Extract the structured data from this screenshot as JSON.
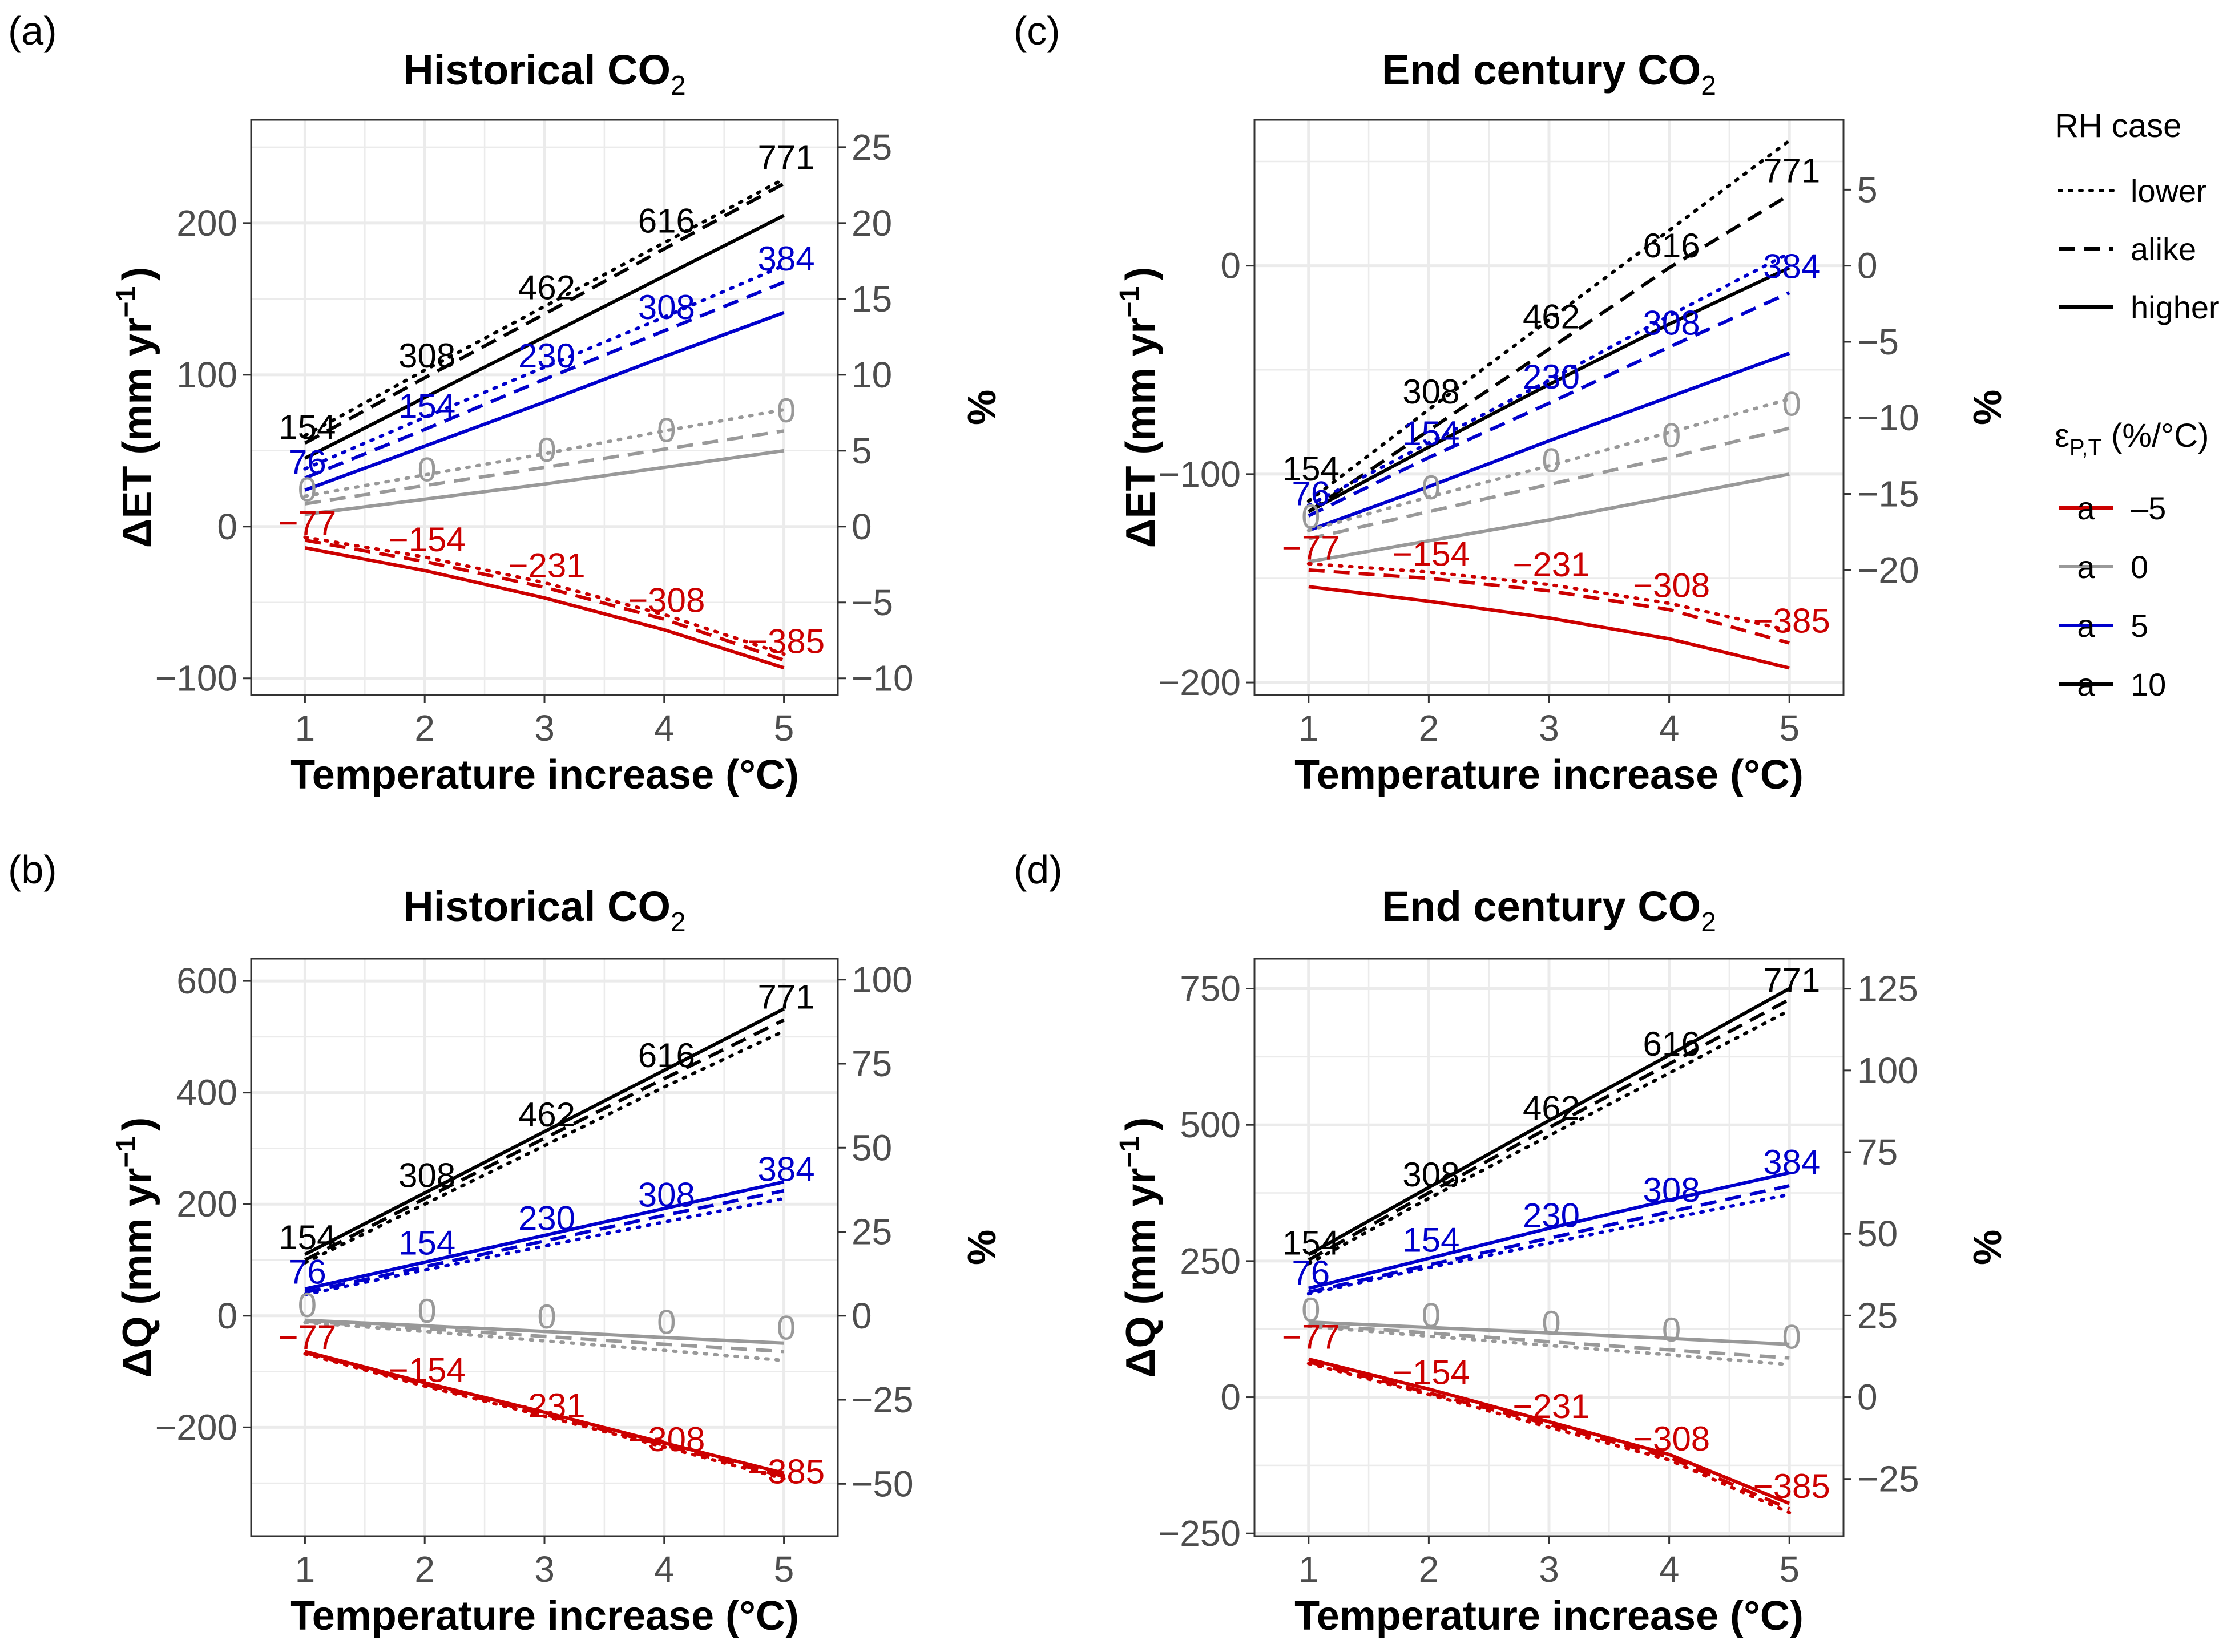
{
  "colors": {
    "eps_-5": "#CC0000",
    "eps_0": "#999999",
    "eps_5": "#0000CC",
    "eps_10": "#000000",
    "grid": "#ebebeb",
    "panel_border": "#333333",
    "tick_text": "#4d4d4d"
  },
  "legend": {
    "rh_title": "RH case",
    "rh_items": [
      {
        "label": "lower",
        "dash": "dotted"
      },
      {
        "label": "alike",
        "dash": "dashed"
      },
      {
        "label": "higher",
        "dash": "solid"
      }
    ],
    "eps_title_main": "ε",
    "eps_title_sub": "P,T",
    "eps_title_rest": " (%/°C)",
    "eps_key_glyph": "a",
    "eps_items": [
      {
        "label": "–5",
        "color_key": "eps_-5"
      },
      {
        "label": "0",
        "color_key": "eps_0"
      },
      {
        "label": "5",
        "color_key": "eps_5"
      },
      {
        "label": "10",
        "color_key": "eps_10"
      }
    ]
  },
  "chart_data": [
    {
      "panel": "(a)",
      "type": "line",
      "title_main": "Historical CO",
      "title_sub": "2",
      "xlabel": "Temperature increase (°C)",
      "ylabel_main": "ΔET (mm yr",
      "ylabel_sup": "−1",
      "ylabel_end": ")",
      "y2label": "%",
      "xlim": [
        0.55,
        5.45
      ],
      "ylim": [
        -111,
        268
      ],
      "x": [
        1,
        2,
        3,
        4,
        5
      ],
      "x_ticks": [
        1,
        2,
        3,
        4,
        5
      ],
      "y_ticks": [
        -100,
        0,
        100,
        200
      ],
      "y2_ticks": [
        -10,
        -5,
        0,
        5,
        10,
        15,
        20,
        25
      ],
      "y2_scale": 0.1,
      "grid": true,
      "series": [
        {
          "eps": "10",
          "rh": "lower",
          "values": [
            60,
            103,
            145,
            187,
            229
          ]
        },
        {
          "eps": "10",
          "rh": "alike",
          "values": [
            55,
            98,
            140,
            183,
            226
          ]
        },
        {
          "eps": "10",
          "rh": "higher",
          "values": [
            45,
            85,
            125,
            165,
            205
          ]
        },
        {
          "eps": "5",
          "rh": "lower",
          "values": [
            38,
            72,
            105,
            138,
            172
          ]
        },
        {
          "eps": "5",
          "rh": "alike",
          "values": [
            32,
            64,
            97,
            129,
            161
          ]
        },
        {
          "eps": "5",
          "rh": "higher",
          "values": [
            24,
            53,
            82,
            112,
            141
          ]
        },
        {
          "eps": "0",
          "rh": "lower",
          "values": [
            20,
            34,
            48,
            63,
            77
          ]
        },
        {
          "eps": "0",
          "rh": "alike",
          "values": [
            15,
            27,
            39,
            51,
            63
          ]
        },
        {
          "eps": "0",
          "rh": "higher",
          "values": [
            8,
            18,
            28,
            39,
            50
          ]
        },
        {
          "eps": "-5",
          "rh": "lower",
          "values": [
            -7,
            -20,
            -37,
            -58,
            -84
          ]
        },
        {
          "eps": "-5",
          "rh": "alike",
          "values": [
            -9,
            -23,
            -40,
            -61,
            -88
          ]
        },
        {
          "eps": "-5",
          "rh": "higher",
          "values": [
            -14,
            -29,
            -47,
            -68,
            -93
          ]
        }
      ],
      "annotations": [
        {
          "eps": "10",
          "text": [
            "154",
            "308",
            "462",
            "616",
            "771"
          ],
          "y": [
            66,
            113,
            158,
            202,
            244
          ]
        },
        {
          "eps": "5",
          "text": [
            "76",
            "154",
            "230",
            "308",
            "384"
          ],
          "y": [
            43,
            80,
            113,
            145,
            177
          ]
        },
        {
          "eps": "0",
          "text": [
            "0",
            "0",
            "0",
            "0",
            "0"
          ],
          "y": [
            25,
            38,
            51,
            64,
            77
          ]
        },
        {
          "eps": "-5",
          "text": [
            "−77",
            "−154",
            "−231",
            "−308",
            "−385"
          ],
          "y": [
            3,
            -8,
            -25,
            -48,
            -75
          ]
        }
      ]
    },
    {
      "panel": "(c)",
      "type": "line",
      "title_main": "End century CO",
      "title_sub": "2",
      "xlabel": "Temperature increase (°C)",
      "ylabel_main": "ΔET (mm yr",
      "ylabel_sup": "−1",
      "ylabel_end": ")",
      "y2label": "%",
      "xlim": [
        0.55,
        5.45
      ],
      "ylim": [
        -206,
        70
      ],
      "x": [
        1,
        2,
        3,
        4,
        5
      ],
      "x_ticks": [
        1,
        2,
        3,
        4,
        5
      ],
      "y_ticks": [
        -200,
        -100,
        0
      ],
      "y2_ticks": [
        -20,
        -15,
        -10,
        -5,
        0,
        5
      ],
      "y2_scale": 0.137,
      "grid": true,
      "series": [
        {
          "eps": "10",
          "rh": "lower",
          "values": [
            -113,
            -69,
            -26,
            17,
            60
          ]
        },
        {
          "eps": "10",
          "rh": "alike",
          "values": [
            -118,
            -79,
            -40,
            -1,
            34
          ]
        },
        {
          "eps": "10",
          "rh": "higher",
          "values": [
            -118,
            -87,
            -57,
            -28,
            -1
          ]
        },
        {
          "eps": "5",
          "rh": "lower",
          "values": [
            -115,
            -85,
            -55,
            -24,
            6
          ]
        },
        {
          "eps": "5",
          "rh": "alike",
          "values": [
            -120,
            -92,
            -66,
            -39,
            -13
          ]
        },
        {
          "eps": "5",
          "rh": "higher",
          "values": [
            -127,
            -106,
            -84,
            -63,
            -42
          ]
        },
        {
          "eps": "0",
          "rh": "lower",
          "values": [
            -127,
            -111,
            -96,
            -80,
            -64
          ]
        },
        {
          "eps": "0",
          "rh": "alike",
          "values": [
            -131,
            -118,
            -105,
            -92,
            -78
          ]
        },
        {
          "eps": "0",
          "rh": "higher",
          "values": [
            -142,
            -132,
            -122,
            -111,
            -100
          ]
        },
        {
          "eps": "-5",
          "rh": "lower",
          "values": [
            -143,
            -147,
            -153,
            -162,
            -175
          ]
        },
        {
          "eps": "-5",
          "rh": "alike",
          "values": [
            -146,
            -150,
            -156,
            -165,
            -181
          ]
        },
        {
          "eps": "-5",
          "rh": "higher",
          "values": [
            -154,
            -161,
            -169,
            -179,
            -193
          ]
        }
      ],
      "annotations": [
        {
          "eps": "10",
          "text": [
            "154",
            "308",
            "462",
            "616",
            "771"
          ],
          "y": [
            -97,
            -60,
            -24,
            10,
            46
          ]
        },
        {
          "eps": "5",
          "text": [
            "76",
            "154",
            "230",
            "308",
            "384"
          ],
          "y": [
            -109,
            -80,
            -53,
            -27,
            0
          ]
        },
        {
          "eps": "0",
          "text": [
            "0",
            "0",
            "0",
            "0",
            "0"
          ],
          "y": [
            -120,
            -106,
            -93,
            -81,
            -66
          ]
        },
        {
          "eps": "-5",
          "text": [
            "−77",
            "−154",
            "−231",
            "−308",
            "−385"
          ],
          "y": [
            -135,
            -138,
            -143,
            -153,
            -170
          ]
        }
      ]
    },
    {
      "panel": "(b)",
      "type": "line",
      "title_main": "Historical CO",
      "title_sub": "2",
      "xlabel": "Temperature increase (°C)",
      "ylabel_main": "ΔQ (mm yr",
      "ylabel_sup": "−1",
      "ylabel_end": ")",
      "y2label": "%",
      "xlim": [
        0.55,
        5.45
      ],
      "ylim": [
        -395,
        640
      ],
      "x": [
        1,
        2,
        3,
        4,
        5
      ],
      "x_ticks": [
        1,
        2,
        3,
        4,
        5
      ],
      "y_ticks": [
        -200,
        0,
        200,
        400,
        600
      ],
      "y2_ticks": [
        -50,
        -25,
        0,
        25,
        50,
        75,
        100
      ],
      "y2_scale": 0.166,
      "grid": true,
      "series": [
        {
          "eps": "10",
          "rh": "lower",
          "values": [
            95,
            200,
            305,
            410,
            510
          ]
        },
        {
          "eps": "10",
          "rh": "alike",
          "values": [
            100,
            210,
            318,
            425,
            530
          ]
        },
        {
          "eps": "10",
          "rh": "higher",
          "values": [
            110,
            220,
            330,
            440,
            550
          ]
        },
        {
          "eps": "5",
          "rh": "lower",
          "values": [
            38,
            82,
            125,
            168,
            210
          ]
        },
        {
          "eps": "5",
          "rh": "alike",
          "values": [
            42,
            88,
            134,
            180,
            224
          ]
        },
        {
          "eps": "5",
          "rh": "higher",
          "values": [
            48,
            96,
            144,
            192,
            240
          ]
        },
        {
          "eps": "0",
          "rh": "lower",
          "values": [
            -12,
            -28,
            -45,
            -62,
            -80
          ]
        },
        {
          "eps": "0",
          "rh": "alike",
          "values": [
            -10,
            -23,
            -37,
            -51,
            -64
          ]
        },
        {
          "eps": "0",
          "rh": "higher",
          "values": [
            -8,
            -18,
            -28,
            -39,
            -49
          ]
        },
        {
          "eps": "-5",
          "rh": "lower",
          "values": [
            -68,
            -126,
            -180,
            -235,
            -292
          ]
        },
        {
          "eps": "-5",
          "rh": "alike",
          "values": [
            -66,
            -123,
            -177,
            -232,
            -288
          ]
        },
        {
          "eps": "-5",
          "rh": "higher",
          "values": [
            -64,
            -120,
            -173,
            -228,
            -282
          ]
        }
      ],
      "annotations": [
        {
          "eps": "10",
          "text": [
            "154",
            "308",
            "462",
            "616",
            "771"
          ],
          "y": [
            142,
            253,
            362,
            468,
            573
          ]
        },
        {
          "eps": "5",
          "text": [
            "76",
            "154",
            "230",
            "308",
            "384"
          ],
          "y": [
            80,
            132,
            176,
            218,
            264
          ]
        },
        {
          "eps": "0",
          "text": [
            "0",
            "0",
            "0",
            "0",
            "0"
          ],
          "y": [
            20,
            10,
            0,
            -10,
            -20
          ]
        },
        {
          "eps": "-5",
          "text": [
            "−77",
            "−154",
            "−231",
            "−308",
            "−385"
          ],
          "y": [
            -37,
            -96,
            -160,
            -220,
            -278
          ]
        }
      ]
    },
    {
      "panel": "(d)",
      "type": "line",
      "title_main": "End century CO",
      "title_sub": "2",
      "xlabel": "Temperature increase (°C)",
      "ylabel_main": "ΔQ (mm yr",
      "ylabel_sup": "−1",
      "ylabel_end": ")",
      "y2label": "%",
      "xlim": [
        0.55,
        5.45
      ],
      "ylim": [
        -255,
        805
      ],
      "x": [
        1,
        2,
        3,
        4,
        5
      ],
      "x_ticks": [
        1,
        2,
        3,
        4,
        5
      ],
      "y_ticks": [
        -250,
        0,
        250,
        500,
        750
      ],
      "y2_ticks": [
        -25,
        0,
        25,
        50,
        75,
        100,
        125
      ],
      "y2_scale": 0.1667,
      "grid": true,
      "series": [
        {
          "eps": "10",
          "rh": "lower",
          "values": [
            245,
            365,
            480,
            595,
            710
          ]
        },
        {
          "eps": "10",
          "rh": "alike",
          "values": [
            252,
            375,
            495,
            612,
            730
          ]
        },
        {
          "eps": "10",
          "rh": "higher",
          "values": [
            262,
            385,
            508,
            628,
            750
          ]
        },
        {
          "eps": "5",
          "rh": "lower",
          "values": [
            190,
            238,
            283,
            328,
            372
          ]
        },
        {
          "eps": "5",
          "rh": "alike",
          "values": [
            193,
            243,
            292,
            340,
            388
          ]
        },
        {
          "eps": "5",
          "rh": "higher",
          "values": [
            200,
            255,
            310,
            362,
            412
          ]
        },
        {
          "eps": "0",
          "rh": "lower",
          "values": [
            130,
            112,
            95,
            78,
            60
          ]
        },
        {
          "eps": "0",
          "rh": "alike",
          "values": [
            133,
            118,
            102,
            87,
            72
          ]
        },
        {
          "eps": "0",
          "rh": "higher",
          "values": [
            138,
            128,
            118,
            108,
            97
          ]
        },
        {
          "eps": "-5",
          "rh": "lower",
          "values": [
            62,
            5,
            -55,
            -115,
            -212
          ]
        },
        {
          "eps": "-5",
          "rh": "alike",
          "values": [
            65,
            8,
            -50,
            -110,
            -205
          ]
        },
        {
          "eps": "-5",
          "rh": "higher",
          "values": [
            70,
            15,
            -45,
            -105,
            -195
          ]
        }
      ],
      "annotations": [
        {
          "eps": "10",
          "text": [
            "154",
            "308",
            "462",
            "616",
            "771"
          ],
          "y": [
            285,
            410,
            532,
            650,
            767
          ]
        },
        {
          "eps": "5",
          "text": [
            "76",
            "154",
            "230",
            "308",
            "384"
          ],
          "y": [
            230,
            290,
            335,
            382,
            433
          ]
        },
        {
          "eps": "0",
          "text": [
            "0",
            "0",
            "0",
            "0",
            "0"
          ],
          "y": [
            162,
            152,
            138,
            125,
            112
          ]
        },
        {
          "eps": "-5",
          "text": [
            "−77",
            "−154",
            "−231",
            "−308",
            "−385"
          ],
          "y": [
            112,
            47,
            -15,
            -75,
            -162
          ]
        }
      ]
    }
  ]
}
